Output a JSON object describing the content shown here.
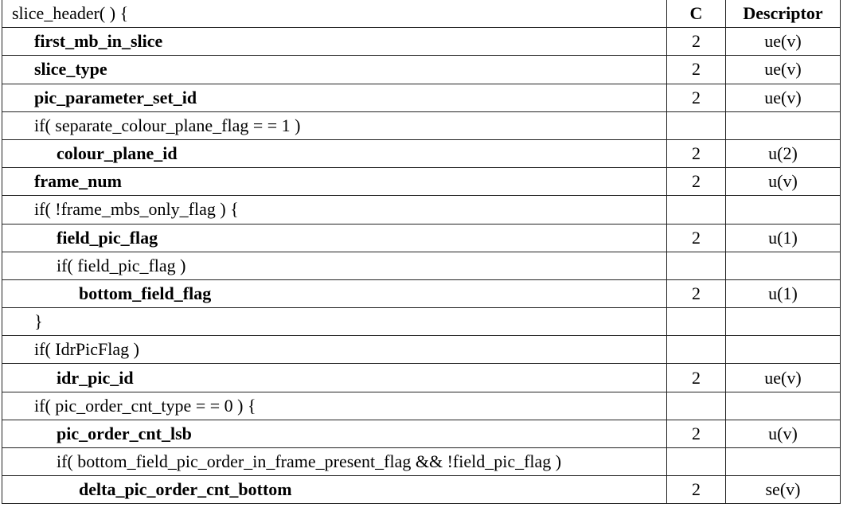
{
  "header": {
    "syntax": "slice_header( ) {",
    "c": "C",
    "descriptor": "Descriptor"
  },
  "rows": [
    {
      "syntax": "first_mb_in_slice",
      "indent": 1,
      "bold": true,
      "c": "2",
      "descriptor": "ue(v)"
    },
    {
      "syntax": "slice_type",
      "indent": 1,
      "bold": true,
      "c": "2",
      "descriptor": "ue(v)"
    },
    {
      "syntax": "pic_parameter_set_id",
      "indent": 1,
      "bold": true,
      "c": "2",
      "descriptor": "ue(v)"
    },
    {
      "syntax": "if( separate_colour_plane_flag = = 1 )",
      "indent": 1,
      "bold": false,
      "c": "",
      "descriptor": ""
    },
    {
      "syntax": "colour_plane_id",
      "indent": 2,
      "bold": true,
      "c": "2",
      "descriptor": "u(2)"
    },
    {
      "syntax": "frame_num",
      "indent": 1,
      "bold": true,
      "c": "2",
      "descriptor": "u(v)"
    },
    {
      "syntax": "if( !frame_mbs_only_flag ) {",
      "indent": 1,
      "bold": false,
      "c": "",
      "descriptor": ""
    },
    {
      "syntax": "field_pic_flag",
      "indent": 2,
      "bold": true,
      "c": "2",
      "descriptor": "u(1)"
    },
    {
      "syntax": "if( field_pic_flag )",
      "indent": 2,
      "bold": false,
      "c": "",
      "descriptor": ""
    },
    {
      "syntax": "bottom_field_flag",
      "indent": 3,
      "bold": true,
      "c": "2",
      "descriptor": "u(1)"
    },
    {
      "syntax": "}",
      "indent": 1,
      "bold": false,
      "c": "",
      "descriptor": ""
    },
    {
      "syntax": "if( IdrPicFlag )",
      "indent": 1,
      "bold": false,
      "c": "",
      "descriptor": ""
    },
    {
      "syntax": "idr_pic_id",
      "indent": 2,
      "bold": true,
      "c": "2",
      "descriptor": "ue(v)"
    },
    {
      "syntax": "if( pic_order_cnt_type = = 0 ) {",
      "indent": 1,
      "bold": false,
      "c": "",
      "descriptor": ""
    },
    {
      "syntax": "pic_order_cnt_lsb",
      "indent": 2,
      "bold": true,
      "c": "2",
      "descriptor": "u(v)"
    },
    {
      "syntax": "if( bottom_field_pic_order_in_frame_present_flag && !field_pic_flag )",
      "indent": 2,
      "bold": false,
      "c": "",
      "descriptor": ""
    },
    {
      "syntax": "delta_pic_order_cnt_bottom",
      "indent": 3,
      "bold": true,
      "c": "2",
      "descriptor": "se(v)"
    }
  ]
}
